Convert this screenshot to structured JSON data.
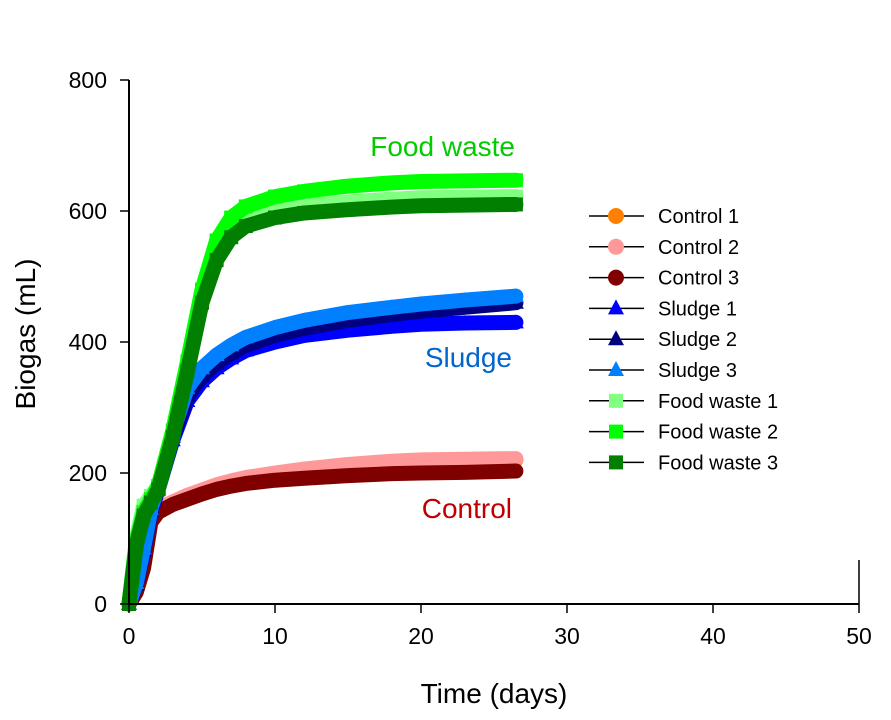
{
  "chart_data": {
    "type": "line",
    "title": "",
    "xlabel": "Time (days)",
    "ylabel": "Biogas (mL)",
    "xlim": [
      0,
      50
    ],
    "ylim": [
      0,
      800
    ],
    "xticks": [
      0,
      10,
      20,
      30,
      40,
      50
    ],
    "yticks": [
      0,
      200,
      400,
      600,
      800
    ],
    "xtick_labels": [
      "0",
      "10",
      "20",
      "30",
      "40",
      "50"
    ],
    "ytick_labels": [
      "0",
      "200",
      "400",
      "600",
      "800"
    ],
    "grid": false,
    "legend_position": "right",
    "x": [
      0,
      0.5,
      1,
      1.5,
      2,
      3,
      4,
      5,
      6,
      7,
      8,
      10,
      12,
      15,
      18,
      20,
      23,
      26.5
    ],
    "series": [
      {
        "name": "Control 1",
        "marker": "circle",
        "color": "#ff7f00",
        "values": [
          0,
          20,
          60,
          130,
          145,
          155,
          165,
          172,
          180,
          186,
          190,
          197,
          203,
          210,
          215,
          217,
          218,
          220
        ]
      },
      {
        "name": "Control 2",
        "marker": "circle",
        "color": "#ff9999",
        "values": [
          0,
          20,
          60,
          130,
          145,
          156,
          166,
          174,
          182,
          188,
          193,
          200,
          206,
          213,
          218,
          220,
          221,
          222
        ]
      },
      {
        "name": "Control 3",
        "marker": "circle",
        "color": "#800000",
        "values": [
          0,
          18,
          55,
          125,
          140,
          152,
          160,
          168,
          175,
          180,
          184,
          189,
          192,
          196,
          199,
          200,
          201,
          203
        ]
      },
      {
        "name": "Sludge 1",
        "marker": "triangle",
        "color": "#0000ff",
        "values": [
          0,
          30,
          80,
          140,
          175,
          250,
          310,
          340,
          360,
          375,
          387,
          400,
          410,
          418,
          424,
          427,
          429,
          430
        ]
      },
      {
        "name": "Sludge 2",
        "marker": "triangle",
        "color": "#000080",
        "values": [
          0,
          30,
          82,
          142,
          178,
          255,
          318,
          348,
          368,
          383,
          395,
          410,
          421,
          433,
          442,
          447,
          453,
          460
        ]
      },
      {
        "name": "Sludge 3",
        "marker": "triangle",
        "color": "#0080ff",
        "values": [
          0,
          32,
          85,
          145,
          180,
          262,
          330,
          360,
          380,
          395,
          407,
          422,
          433,
          445,
          453,
          458,
          464,
          470
        ]
      },
      {
        "name": "Food waste 1",
        "marker": "square",
        "color": "#80ff80",
        "values": [
          0,
          100,
          150,
          165,
          180,
          260,
          360,
          460,
          530,
          565,
          585,
          600,
          608,
          614,
          618,
          620,
          621,
          622
        ]
      },
      {
        "name": "Food waste 2",
        "marker": "square",
        "color": "#00ff00",
        "values": [
          0,
          95,
          140,
          160,
          180,
          265,
          370,
          480,
          555,
          590,
          607,
          622,
          630,
          638,
          643,
          645,
          646,
          647
        ]
      },
      {
        "name": "Food waste 3",
        "marker": "square",
        "color": "#007f00",
        "values": [
          0,
          90,
          135,
          155,
          175,
          255,
          355,
          460,
          525,
          560,
          577,
          590,
          597,
          602,
          606,
          608,
          609,
          610
        ]
      }
    ],
    "annotations": [
      {
        "text": "Food waste",
        "color": "#00cc00",
        "x": 26.5,
        "y": 695
      },
      {
        "text": "Sludge",
        "color": "#0066cc",
        "x": 26.5,
        "y": 375
      },
      {
        "text": "Control",
        "color": "#c00000",
        "x": 26.5,
        "y": 145
      }
    ]
  }
}
